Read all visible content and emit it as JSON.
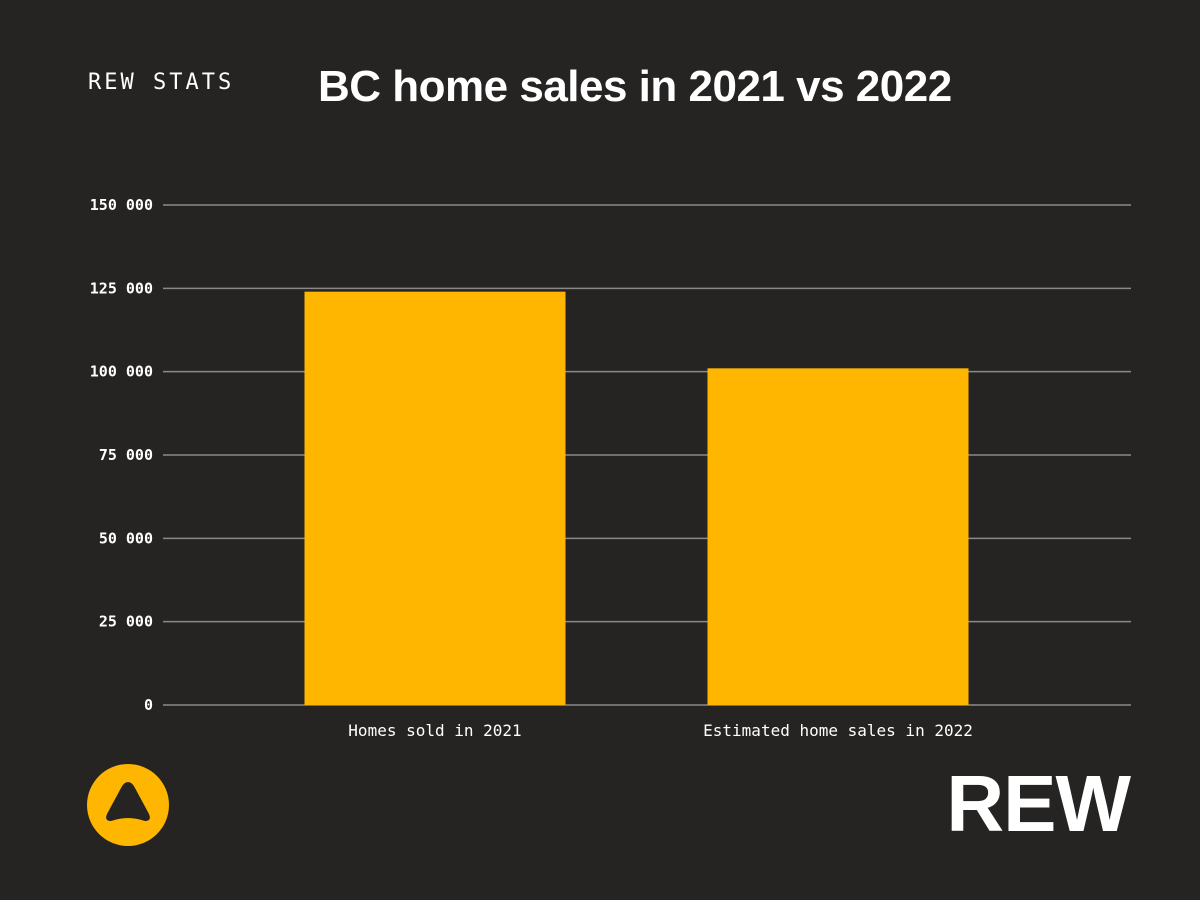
{
  "header": {
    "brand_tag": "REW STATS",
    "title": "BC home sales in 2021 vs 2022"
  },
  "footer": {
    "logo_word": "REW"
  },
  "colors": {
    "background": "#252423",
    "bar": "#FFB600",
    "grid": "#8a8987",
    "text": "#ffffff"
  },
  "chart_data": {
    "type": "bar",
    "title": "BC home sales in 2021 vs 2022",
    "xlabel": "",
    "ylabel": "",
    "categories": [
      "Homes sold in 2021",
      "Estimated home sales in 2022"
    ],
    "values": [
      124000,
      101000
    ],
    "ylim": [
      0,
      150000
    ],
    "yticks": [
      0,
      25000,
      50000,
      75000,
      100000,
      125000,
      150000
    ],
    "ytick_labels": [
      "0",
      "25 000",
      "50 000",
      "75 000",
      "100 000",
      "125 000",
      "150 000"
    ],
    "grid": true,
    "legend": "none"
  }
}
